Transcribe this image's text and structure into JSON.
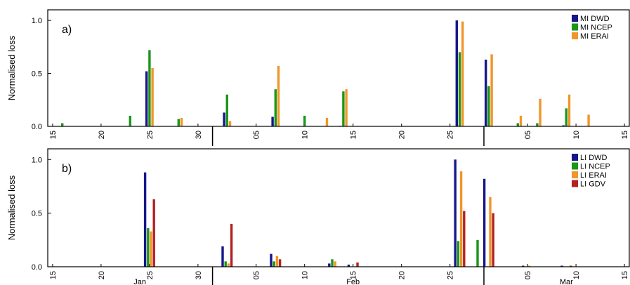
{
  "chart_data": [
    {
      "type": "bar",
      "panel_label": "a)",
      "ylabel": "Normalised loss",
      "x": [
        16,
        23,
        25,
        28,
        33,
        38,
        41,
        43,
        45,
        57,
        60,
        63,
        65,
        68,
        70
      ],
      "series": [
        {
          "name": "MI DWD",
          "color": "#16168a",
          "values": [
            null,
            null,
            0.52,
            null,
            0.13,
            0.09,
            null,
            null,
            0.005,
            1.0,
            0.63,
            null,
            null,
            0.01,
            null
          ]
        },
        {
          "name": "MI NCEP",
          "color": "#1a961a",
          "values": [
            0.03,
            0.1,
            0.72,
            0.07,
            0.3,
            0.35,
            0.1,
            null,
            0.33,
            0.7,
            0.38,
            0.03,
            0.03,
            0.17,
            null
          ]
        },
        {
          "name": "MI ERAI",
          "color": "#f0962a",
          "values": [
            null,
            null,
            0.55,
            0.08,
            0.05,
            0.57,
            null,
            0.08,
            0.35,
            0.99,
            0.68,
            0.1,
            0.26,
            0.3,
            0.11
          ]
        }
      ],
      "xlim": [
        14.5,
        74.5
      ],
      "xticks": [
        15,
        20,
        25,
        30,
        {
          "value": 36,
          "label": "05"
        },
        {
          "value": 41,
          "label": "10"
        },
        {
          "value": 46,
          "label": "15"
        },
        {
          "value": 51,
          "label": "20"
        },
        {
          "value": 56,
          "label": "25"
        },
        {
          "value": 64,
          "label": "05"
        },
        {
          "value": 69,
          "label": "10"
        },
        {
          "value": 74,
          "label": "15"
        }
      ],
      "month_boundaries": [
        31.5,
        59.5
      ],
      "ylim": [
        0,
        1.1
      ],
      "yticks": [
        {
          "value": 0,
          "label": "0.0"
        },
        {
          "value": 0.5,
          "label": "0.5"
        },
        {
          "value": 1,
          "label": "1.0"
        }
      ],
      "legend": "upper right"
    },
    {
      "type": "bar",
      "panel_label": "b)",
      "ylabel": "Normalised loss",
      "x": [
        25,
        33,
        38,
        44,
        46,
        57,
        59,
        60,
        64,
        68
      ],
      "series": [
        {
          "name": "LI DWD",
          "color": "#16168a",
          "values": [
            0.88,
            0.19,
            0.12,
            0.03,
            0.02,
            1.0,
            null,
            0.82,
            0.01,
            0.01
          ]
        },
        {
          "name": "LI NCEP",
          "color": "#1a961a",
          "values": [
            0.36,
            0.05,
            0.05,
            0.07,
            null,
            0.24,
            0.25,
            null,
            null,
            null
          ]
        },
        {
          "name": "LI ERAI",
          "color": "#f0962a",
          "values": [
            0.33,
            0.03,
            0.1,
            0.05,
            null,
            0.89,
            null,
            0.65,
            0.01,
            null
          ]
        },
        {
          "name": "LI GDV",
          "color": "#b22222",
          "values": [
            0.63,
            0.4,
            0.07,
            null,
            0.04,
            0.52,
            null,
            0.5,
            null,
            0.01
          ]
        }
      ],
      "xlim": [
        14.5,
        74.5
      ],
      "xticks": [
        15,
        20,
        25,
        30,
        {
          "value": 36,
          "label": "05"
        },
        {
          "value": 41,
          "label": "10"
        },
        {
          "value": 46,
          "label": "15"
        },
        {
          "value": 51,
          "label": "20"
        },
        {
          "value": 56,
          "label": "25"
        },
        {
          "value": 64,
          "label": "05"
        },
        {
          "value": 69,
          "label": "10"
        },
        {
          "value": 74,
          "label": "15"
        }
      ],
      "month_boundaries": [
        31.5,
        59.5
      ],
      "month_labels": [
        {
          "value": 24,
          "label": "Jan"
        },
        {
          "value": 46,
          "label": "Feb"
        },
        {
          "value": 68,
          "label": "Mar"
        }
      ],
      "ylim": [
        0,
        1.1
      ],
      "yticks": [
        {
          "value": 0,
          "label": "0.0"
        },
        {
          "value": 0.5,
          "label": "0.5"
        },
        {
          "value": 1,
          "label": "1.0"
        }
      ],
      "legend": "upper right"
    }
  ]
}
